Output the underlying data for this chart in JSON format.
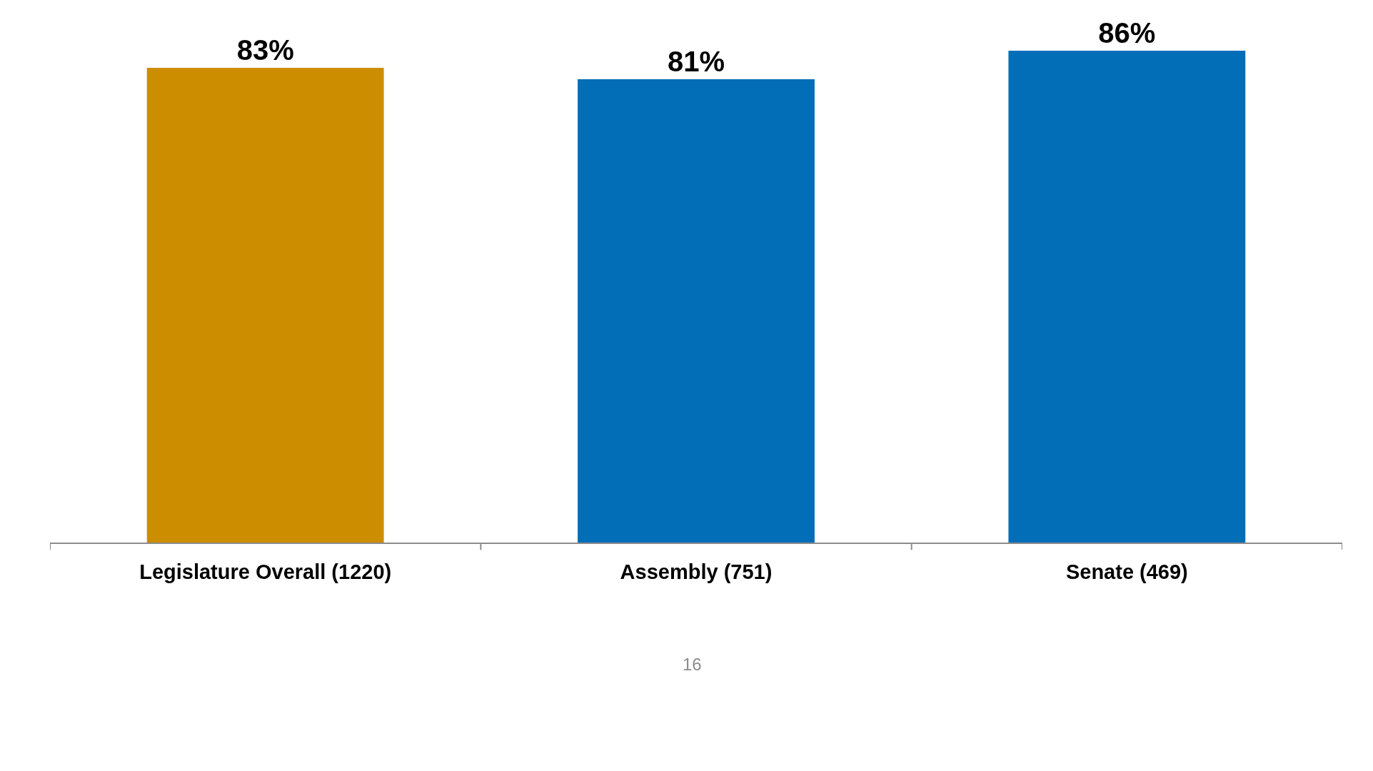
{
  "chart_data": {
    "type": "bar",
    "categories": [
      "Legislature Overall (1220)",
      "Assembly (751)",
      "Senate (469)"
    ],
    "values": [
      83,
      81,
      86
    ],
    "value_labels": [
      "83%",
      "81%",
      "86%"
    ],
    "colors": [
      "#cc8e00",
      "#036eb8",
      "#036eb8"
    ],
    "annotations": [
      "16"
    ]
  }
}
